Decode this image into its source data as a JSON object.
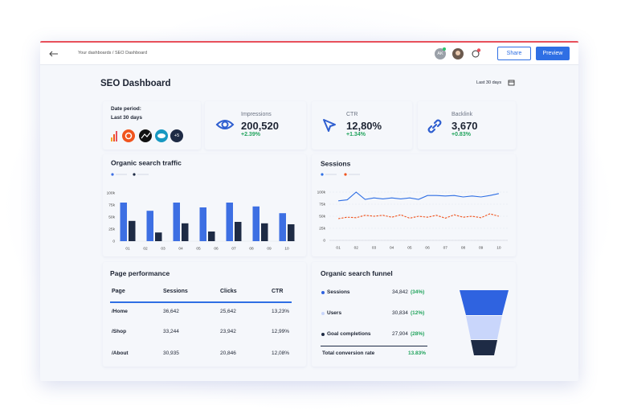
{
  "topbar": {
    "breadcrumb": "Your dashboards / SEO Dashboard",
    "avatar": "AK",
    "share": "Share",
    "preview": "Preview"
  },
  "header": {
    "title": "SEO Dashboard",
    "range": "Last 30 days"
  },
  "date_card": {
    "label": "Date period:",
    "value": "Last 30 days",
    "more": "+5"
  },
  "kpis": [
    {
      "label": "Impressions",
      "value": "200,520",
      "change": "+2.39%"
    },
    {
      "label": "CTR",
      "value": "12,80%",
      "change": "+1.34%"
    },
    {
      "label": "Backlink",
      "value": "3,670",
      "change": "+0.83%"
    }
  ],
  "chart_data": [
    {
      "type": "bar",
      "title": "Organic search traffic",
      "x": [
        1,
        2.5,
        4,
        5.5,
        7,
        8.5,
        10
      ],
      "series": [
        {
          "color": "#3d6fe3",
          "values": [
            80000,
            63000,
            80000,
            70000,
            80000,
            72000,
            58000
          ]
        },
        {
          "color": "#1e2b45",
          "values": [
            42000,
            18000,
            37000,
            20000,
            40000,
            37000,
            35000
          ]
        }
      ],
      "xlim": [
        0.5,
        10.5
      ],
      "xticks": [
        {
          "value": 1,
          "label": "01"
        },
        {
          "value": 2,
          "label": "02"
        },
        {
          "value": 3,
          "label": "03"
        },
        {
          "value": 4,
          "label": "04"
        },
        {
          "value": 5,
          "label": "05"
        },
        {
          "value": 6,
          "label": "06"
        },
        {
          "value": 7,
          "label": "07"
        },
        {
          "value": 8,
          "label": "08"
        },
        {
          "value": 9,
          "label": "09"
        },
        {
          "value": 10,
          "label": "10"
        }
      ],
      "ylim": [
        0,
        100000
      ],
      "yticks": [
        0,
        {
          "value": 25000,
          "label": "25k"
        },
        {
          "value": 50000,
          "label": "50k"
        },
        {
          "value": 75000,
          "label": "75k"
        },
        {
          "value": 100000,
          "label": "100k"
        }
      ],
      "grid": false
    },
    {
      "type": "line",
      "title": "Sessions",
      "x": [
        1,
        1.5,
        2,
        2.5,
        3,
        3.5,
        4,
        4.5,
        5,
        5.5,
        6,
        6.5,
        7,
        7.5,
        8,
        8.5,
        9,
        9.5,
        10
      ],
      "series": [
        {
          "color": "#2f6fe4",
          "dash": false,
          "values": [
            82000,
            84000,
            100000,
            85000,
            88000,
            86000,
            88000,
            86000,
            88000,
            85000,
            93000,
            93000,
            92000,
            93000,
            90000,
            92000,
            90000,
            93000,
            97000
          ]
        },
        {
          "color": "#f0541e",
          "dash": true,
          "values": [
            45000,
            48000,
            47000,
            52000,
            50000,
            52000,
            48000,
            53000,
            46000,
            50000,
            48000,
            52000,
            46000,
            53000,
            48000,
            50000,
            47000,
            55000,
            50000
          ]
        }
      ],
      "xlim": [
        0.5,
        10.5
      ],
      "xticks": [
        {
          "value": 1,
          "label": "01"
        },
        {
          "value": 2,
          "label": "02"
        },
        {
          "value": 3,
          "label": "03"
        },
        {
          "value": 4,
          "label": "04"
        },
        {
          "value": 5,
          "label": "05"
        },
        {
          "value": 6,
          "label": "06"
        },
        {
          "value": 7,
          "label": "07"
        },
        {
          "value": 8,
          "label": "08"
        },
        {
          "value": 9,
          "label": "09"
        },
        {
          "value": 10,
          "label": "10"
        }
      ],
      "ylim": [
        0,
        100000
      ],
      "yticks": [
        0,
        {
          "value": 25000,
          "label": "25k"
        },
        {
          "value": 50000,
          "label": "50k"
        },
        {
          "value": 75000,
          "label": "75k"
        },
        {
          "value": 100000,
          "label": "100k"
        }
      ],
      "grid": true
    }
  ],
  "page_performance": {
    "title": "Page performance",
    "columns": [
      "Page",
      "Sessions",
      "Clicks",
      "CTR"
    ],
    "rows": [
      [
        "/Home",
        "36,642",
        "25,642",
        "13,23%"
      ],
      [
        "/Shop",
        "33,244",
        "23,942",
        "12,99%"
      ],
      [
        "/About",
        "30,935",
        "20,846",
        "12,08%"
      ]
    ]
  },
  "funnel": {
    "title": "Organic search funnel",
    "rows": [
      {
        "label": "Sessions",
        "value": "34,842",
        "share": "(34%)"
      },
      {
        "label": "Users",
        "value": "30,834",
        "share": "(12%)"
      },
      {
        "label": "Goal completions",
        "value": "27,904",
        "share": "(28%)"
      }
    ],
    "total_label": "Total conversion rate",
    "total": "13.83%"
  }
}
